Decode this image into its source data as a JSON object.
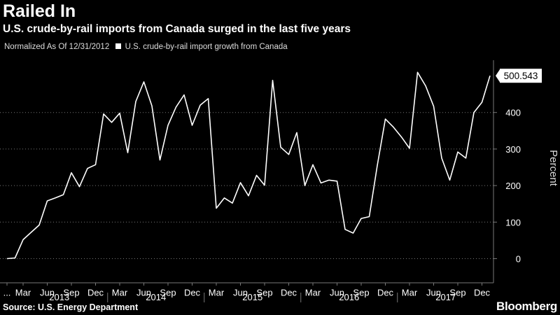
{
  "header": {
    "title": "Railed In",
    "subtitle": "U.S. crude-by-rail imports from Canada surged in the last five years"
  },
  "legend": {
    "prefix": "Normalized As Of 12/31/2012",
    "series_label": "U.S. crude-by-rail import growth from Canada"
  },
  "footer": {
    "source": "Source: U.S. Energy Department",
    "brand": "Bloomberg"
  },
  "colors": {
    "background": "#000000",
    "line": "#ffffff",
    "text": "#ffffff",
    "grid": "#777777"
  },
  "chart_data": {
    "type": "line",
    "title": "Railed In",
    "subtitle": "U.S. crude-by-rail imports from Canada surged in the last five years",
    "ylabel": "Percent",
    "xlabel": "",
    "ylim": [
      -60,
      540
    ],
    "yticks": [
      0,
      100,
      200,
      300,
      400
    ],
    "grid": "horizontal dotted",
    "legend_position": "top-left",
    "month_labels": [
      "...",
      "Mar",
      "Jun",
      "Sep",
      "Dec",
      "Mar",
      "Jun",
      "Sep",
      "Dec",
      "Mar",
      "Jun",
      "Sep",
      "Dec",
      "Mar",
      "Jun",
      "Sep",
      "Dec",
      "Mar",
      "Jun",
      "Sep",
      "Dec"
    ],
    "year_labels": [
      "2013",
      "2014",
      "2015",
      "2016",
      "2017"
    ],
    "last_value_label": "500.543",
    "series": [
      {
        "name": "U.S. crude-by-rail import growth from Canada",
        "x": [
          "2012-12",
          "2013-01",
          "2013-02",
          "2013-03",
          "2013-04",
          "2013-05",
          "2013-06",
          "2013-07",
          "2013-08",
          "2013-09",
          "2013-10",
          "2013-11",
          "2013-12",
          "2014-01",
          "2014-02",
          "2014-03",
          "2014-04",
          "2014-05",
          "2014-06",
          "2014-07",
          "2014-08",
          "2014-09",
          "2014-10",
          "2014-11",
          "2014-12",
          "2015-01",
          "2015-02",
          "2015-03",
          "2015-04",
          "2015-05",
          "2015-06",
          "2015-07",
          "2015-08",
          "2015-09",
          "2015-10",
          "2015-11",
          "2015-12",
          "2016-01",
          "2016-02",
          "2016-03",
          "2016-04",
          "2016-05",
          "2016-06",
          "2016-07",
          "2016-08",
          "2016-09",
          "2016-10",
          "2016-11",
          "2016-12",
          "2017-01",
          "2017-02",
          "2017-03",
          "2017-04",
          "2017-05",
          "2017-06",
          "2017-07",
          "2017-08",
          "2017-09",
          "2017-10",
          "2017-11",
          "2017-12"
        ],
        "values": [
          0,
          2,
          52,
          72,
          92,
          158,
          166,
          175,
          235,
          197,
          247,
          257,
          396,
          373,
          398,
          290,
          430,
          484,
          418,
          270,
          365,
          415,
          448,
          365,
          420,
          438,
          138,
          166,
          152,
          208,
          172,
          228,
          201,
          488,
          305,
          285,
          345,
          200,
          257,
          207,
          215,
          212,
          80,
          70,
          110,
          115,
          255,
          382,
          360,
          333,
          302,
          510,
          473,
          417,
          275,
          215,
          292,
          275,
          400,
          428,
          500.543
        ]
      }
    ]
  }
}
